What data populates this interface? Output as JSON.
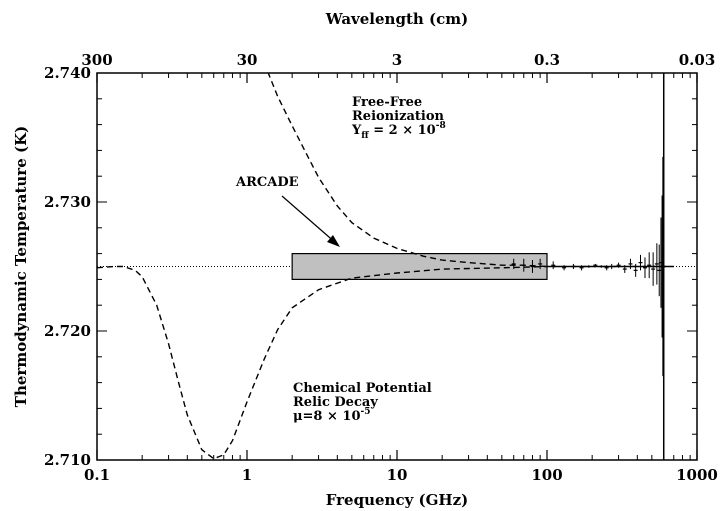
{
  "chart_data": {
    "type": "line",
    "xlabel": "Frequency (GHz)",
    "x2label": "Wavelength (cm)",
    "ylabel": "Thermodynamic Temperature (K)",
    "xscale": "log",
    "xlim": [
      0.1,
      1000
    ],
    "ylim": [
      2.71,
      2.74
    ],
    "x_ticks": [
      {
        "value": 0.1,
        "label": "0.1"
      },
      {
        "value": 1,
        "label": "1"
      },
      {
        "value": 10,
        "label": "10"
      },
      {
        "value": 100,
        "label": "100"
      },
      {
        "value": 1000,
        "label": "1000"
      }
    ],
    "x2_ticks": [
      {
        "value": 0.1,
        "label": "300"
      },
      {
        "value": 1,
        "label": "30"
      },
      {
        "value": 10,
        "label": "3"
      },
      {
        "value": 100,
        "label": "0.3"
      },
      {
        "value": 1000,
        "label": "0.03"
      }
    ],
    "y_ticks": [
      {
        "value": 2.71,
        "label": "2.710"
      },
      {
        "value": 2.72,
        "label": "2.720"
      },
      {
        "value": 2.73,
        "label": "2.730"
      },
      {
        "value": 2.74,
        "label": "2.740"
      }
    ],
    "baseline": 2.725,
    "series": [
      {
        "style": "dashed",
        "x": [
          1.3,
          1.6,
          2,
          2.5,
          3,
          4,
          5,
          7,
          10,
          15,
          20,
          30,
          50,
          70,
          100,
          200,
          400,
          700
        ],
        "y": [
          2.7408,
          2.7382,
          2.7359,
          2.7337,
          2.7319,
          2.7297,
          2.7284,
          2.7272,
          2.7264,
          2.7258,
          2.7255,
          2.7253,
          2.7251,
          2.7251,
          2.725,
          2.725,
          2.725,
          2.725
        ]
      },
      {
        "style": "dashed",
        "x": [
          0.1,
          0.13,
          0.15,
          0.18,
          0.2,
          0.25,
          0.3,
          0.35,
          0.4,
          0.5,
          0.6,
          0.7,
          0.8,
          1.0,
          1.3,
          1.6,
          2,
          3,
          5,
          10,
          20,
          50,
          100,
          200,
          700
        ],
        "y": [
          2.7249,
          2.725,
          2.725,
          2.7247,
          2.7242,
          2.722,
          2.719,
          2.716,
          2.7135,
          2.7108,
          2.7101,
          2.7104,
          2.7115,
          2.7145,
          2.7178,
          2.7201,
          2.7218,
          2.7232,
          2.7241,
          2.7245,
          2.7248,
          2.7249,
          2.725,
          2.725,
          2.725
        ]
      }
    ],
    "arcade_box": {
      "label": "ARCADE",
      "x": [
        2,
        100
      ],
      "y": [
        2.724,
        2.726
      ],
      "color": "#c0c0c0"
    },
    "vertical_line_x": 600,
    "error_bars": [
      {
        "x": 60,
        "y": 2.7252,
        "err": 0.0004
      },
      {
        "x": 70,
        "y": 2.7251,
        "err": 0.0005
      },
      {
        "x": 80,
        "y": 2.725,
        "err": 0.0005
      },
      {
        "x": 90,
        "y": 2.7252,
        "err": 0.0004
      },
      {
        "x": 110,
        "y": 2.7251,
        "err": 0.0003
      },
      {
        "x": 130,
        "y": 2.7249,
        "err": 0.0002
      },
      {
        "x": 150,
        "y": 2.725,
        "err": 0.0002
      },
      {
        "x": 170,
        "y": 2.7249,
        "err": 0.0002
      },
      {
        "x": 190,
        "y": 2.725,
        "err": 0.0001
      },
      {
        "x": 210,
        "y": 2.7251,
        "err": 0.0001
      },
      {
        "x": 230,
        "y": 2.725,
        "err": 0.0001
      },
      {
        "x": 250,
        "y": 2.7249,
        "err": 0.0002
      },
      {
        "x": 270,
        "y": 2.725,
        "err": 0.0002
      },
      {
        "x": 300,
        "y": 2.7251,
        "err": 0.0002
      },
      {
        "x": 330,
        "y": 2.7248,
        "err": 0.0003
      },
      {
        "x": 360,
        "y": 2.7252,
        "err": 0.0004
      },
      {
        "x": 390,
        "y": 2.7247,
        "err": 0.0005
      },
      {
        "x": 420,
        "y": 2.7253,
        "err": 0.0006
      },
      {
        "x": 450,
        "y": 2.7249,
        "err": 0.0008
      },
      {
        "x": 480,
        "y": 2.7251,
        "err": 0.001
      },
      {
        "x": 510,
        "y": 2.7248,
        "err": 0.0013
      },
      {
        "x": 540,
        "y": 2.7252,
        "err": 0.0016
      },
      {
        "x": 560,
        "y": 2.7247,
        "err": 0.002
      },
      {
        "x": 575,
        "y": 2.7253,
        "err": 0.0035
      },
      {
        "x": 585,
        "y": 2.725,
        "err": 0.0055
      },
      {
        "x": 592,
        "y": 2.725,
        "err": 0.0085
      }
    ],
    "annotations": [
      {
        "lines": [
          "Free-Free",
          "Reionization"
        ]
      },
      {
        "base": "Y",
        "sub": "ff",
        "mid": " = 2 × 10",
        "sup": "-8"
      },
      {
        "lines": [
          "Chemical Potential",
          "Relic Decay"
        ]
      },
      {
        "base": "μ",
        "mid": "=8 × 10",
        "sup": "-5"
      },
      {
        "lines": [
          "ARCADE"
        ]
      }
    ]
  }
}
